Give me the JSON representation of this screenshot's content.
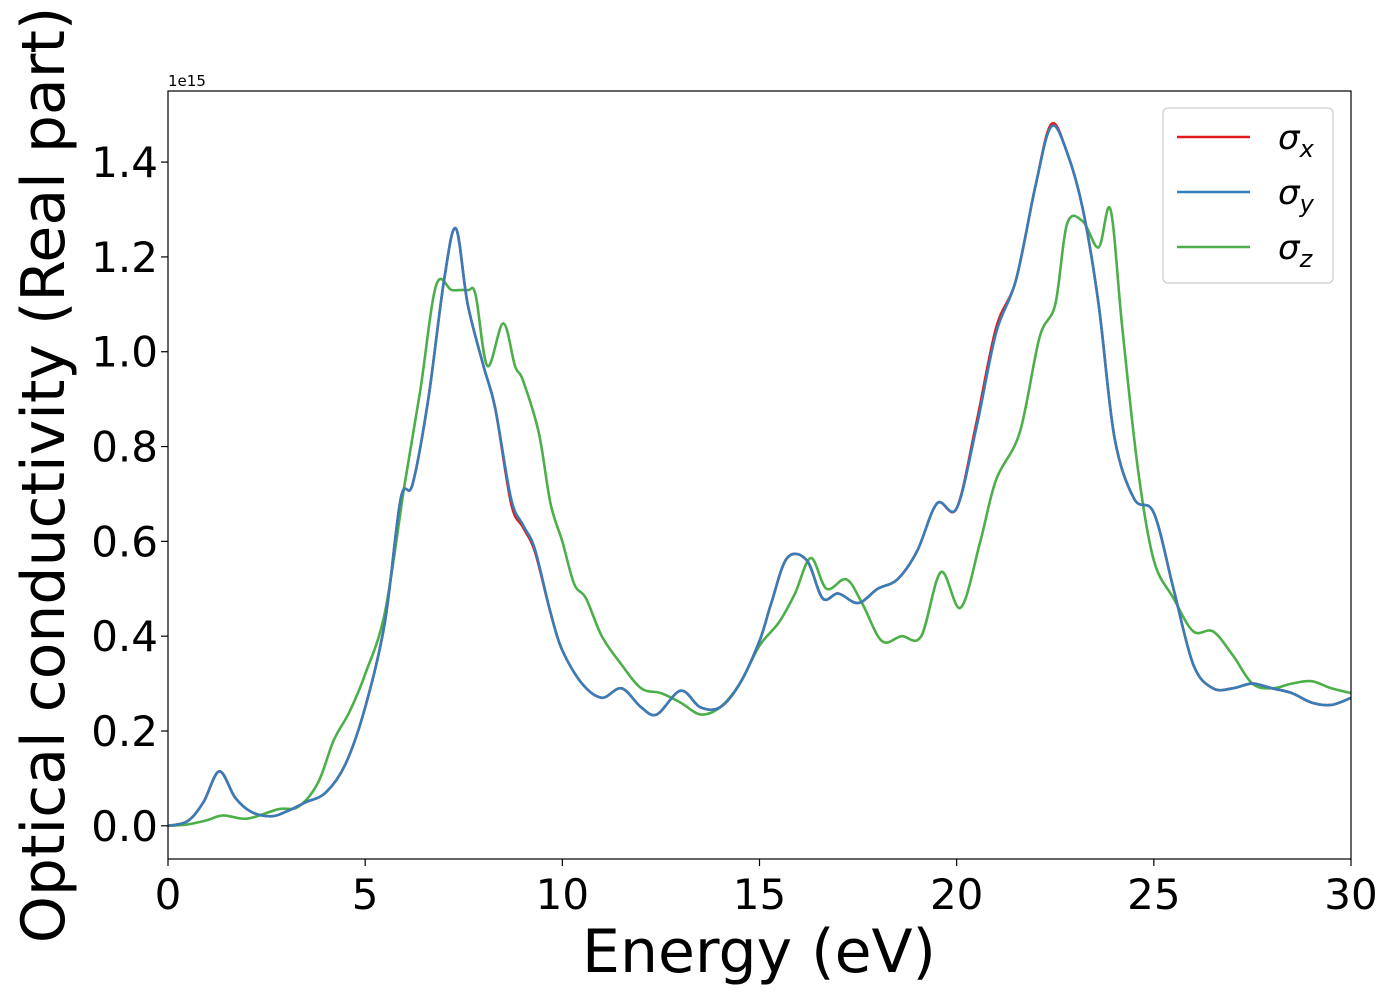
{
  "chart_data": {
    "type": "line",
    "xlabel": "Energy (eV)",
    "ylabel": "Optical conductivity (Real part)",
    "y_offset_label": "1e15",
    "y_scale": 1000000000000000.0,
    "xlim": [
      0,
      30
    ],
    "ylim": [
      -0.07,
      1.55
    ],
    "x_ticks": [
      0,
      5,
      10,
      15,
      20,
      25,
      30
    ],
    "x_tick_labels": [
      "0",
      "5",
      "10",
      "15",
      "20",
      "25",
      "30"
    ],
    "y_ticks": [
      0.0,
      0.2,
      0.4,
      0.6,
      0.8,
      1.0,
      1.2,
      1.4
    ],
    "y_tick_labels": [
      "0.0",
      "0.2",
      "0.4",
      "0.6",
      "0.8",
      "1.0",
      "1.2",
      "1.4"
    ],
    "grid": false,
    "legend_position": "top-right",
    "series": [
      {
        "name": "σ",
        "subscript": "x",
        "color": "#e41a1c",
        "x": [
          0,
          0.5,
          0.9,
          1.3,
          1.7,
          2.1,
          2.6,
          3.0,
          3.5,
          4.0,
          4.5,
          5.0,
          5.5,
          5.9,
          6.2,
          6.6,
          7.0,
          7.3,
          7.6,
          8.0,
          8.3,
          8.7,
          9.0,
          9.3,
          9.7,
          10.0,
          10.5,
          11.0,
          11.5,
          12.0,
          12.4,
          13.0,
          13.5,
          14.0,
          14.5,
          15.0,
          15.3,
          15.7,
          16.2,
          16.6,
          17.0,
          17.5,
          18.0,
          18.5,
          19.0,
          19.5,
          20.0,
          20.5,
          21.0,
          21.5,
          22.0,
          22.4,
          22.8,
          23.2,
          23.6,
          24.0,
          24.5,
          25.0,
          25.5,
          26.0,
          26.5,
          27.0,
          27.5,
          28.0,
          28.5,
          29.0,
          29.5,
          30.0
        ],
        "y": [
          0.0,
          0.01,
          0.05,
          0.115,
          0.06,
          0.03,
          0.02,
          0.03,
          0.05,
          0.07,
          0.13,
          0.25,
          0.43,
          0.69,
          0.72,
          0.9,
          1.15,
          1.26,
          1.1,
          0.97,
          0.88,
          0.68,
          0.63,
          0.58,
          0.45,
          0.37,
          0.3,
          0.27,
          0.29,
          0.25,
          0.235,
          0.285,
          0.25,
          0.25,
          0.3,
          0.39,
          0.47,
          0.565,
          0.56,
          0.48,
          0.49,
          0.47,
          0.5,
          0.52,
          0.58,
          0.68,
          0.67,
          0.85,
          1.05,
          1.15,
          1.35,
          1.48,
          1.42,
          1.3,
          1.1,
          0.82,
          0.69,
          0.66,
          0.5,
          0.34,
          0.29,
          0.29,
          0.3,
          0.29,
          0.28,
          0.26,
          0.255,
          0.27
        ]
      },
      {
        "name": "σ",
        "subscript": "y",
        "color": "#377eb8",
        "x": [
          0,
          0.5,
          0.9,
          1.3,
          1.7,
          2.1,
          2.6,
          3.0,
          3.5,
          4.0,
          4.5,
          5.0,
          5.5,
          5.9,
          6.2,
          6.6,
          7.0,
          7.3,
          7.6,
          8.0,
          8.3,
          8.7,
          9.0,
          9.3,
          9.7,
          10.0,
          10.5,
          11.0,
          11.5,
          12.0,
          12.4,
          13.0,
          13.5,
          14.0,
          14.5,
          15.0,
          15.3,
          15.7,
          16.2,
          16.6,
          17.0,
          17.5,
          18.0,
          18.5,
          19.0,
          19.5,
          20.0,
          20.5,
          21.0,
          21.5,
          22.0,
          22.4,
          22.8,
          23.2,
          23.6,
          24.0,
          24.5,
          25.0,
          25.5,
          26.0,
          26.5,
          27.0,
          27.5,
          28.0,
          28.5,
          29.0,
          29.5,
          30.0
        ],
        "y": [
          0.0,
          0.01,
          0.05,
          0.115,
          0.06,
          0.03,
          0.02,
          0.03,
          0.05,
          0.07,
          0.13,
          0.25,
          0.43,
          0.69,
          0.72,
          0.9,
          1.15,
          1.26,
          1.1,
          0.97,
          0.88,
          0.69,
          0.635,
          0.585,
          0.45,
          0.37,
          0.3,
          0.27,
          0.29,
          0.25,
          0.235,
          0.285,
          0.25,
          0.25,
          0.3,
          0.39,
          0.47,
          0.565,
          0.56,
          0.48,
          0.49,
          0.47,
          0.5,
          0.52,
          0.58,
          0.68,
          0.67,
          0.84,
          1.04,
          1.15,
          1.35,
          1.475,
          1.42,
          1.3,
          1.1,
          0.82,
          0.69,
          0.66,
          0.5,
          0.34,
          0.29,
          0.29,
          0.3,
          0.29,
          0.28,
          0.26,
          0.255,
          0.27
        ]
      },
      {
        "name": "σ",
        "subscript": "z",
        "color": "#4daf4a",
        "x": [
          0,
          0.5,
          1.0,
          1.4,
          2.0,
          2.8,
          3.3,
          3.8,
          4.2,
          4.6,
          5.0,
          5.5,
          6.0,
          6.4,
          6.8,
          7.2,
          7.6,
          7.8,
          8.1,
          8.5,
          8.8,
          9.0,
          9.4,
          9.7,
          10.0,
          10.3,
          10.6,
          11.0,
          11.5,
          12.0,
          12.5,
          13.0,
          13.5,
          14.0,
          14.5,
          15.0,
          15.5,
          15.9,
          16.3,
          16.7,
          17.2,
          17.6,
          18.1,
          18.6,
          19.1,
          19.6,
          20.1,
          20.6,
          21.0,
          21.6,
          22.1,
          22.5,
          22.8,
          23.2,
          23.6,
          23.9,
          24.2,
          24.6,
          25.0,
          25.5,
          26.0,
          26.5,
          27.0,
          27.5,
          28.0,
          28.5,
          29.0,
          29.5,
          30.0
        ],
        "y": [
          0.0,
          0.003,
          0.012,
          0.022,
          0.015,
          0.035,
          0.04,
          0.09,
          0.18,
          0.24,
          0.32,
          0.45,
          0.72,
          0.92,
          1.14,
          1.13,
          1.13,
          1.12,
          0.97,
          1.06,
          0.97,
          0.94,
          0.83,
          0.68,
          0.6,
          0.51,
          0.48,
          0.4,
          0.34,
          0.29,
          0.28,
          0.26,
          0.235,
          0.25,
          0.3,
          0.38,
          0.43,
          0.49,
          0.565,
          0.5,
          0.52,
          0.47,
          0.39,
          0.4,
          0.4,
          0.535,
          0.46,
          0.6,
          0.73,
          0.83,
          1.03,
          1.1,
          1.27,
          1.275,
          1.22,
          1.3,
          1.05,
          0.75,
          0.56,
          0.48,
          0.41,
          0.41,
          0.36,
          0.3,
          0.29,
          0.3,
          0.305,
          0.29,
          0.28
        ]
      }
    ]
  }
}
